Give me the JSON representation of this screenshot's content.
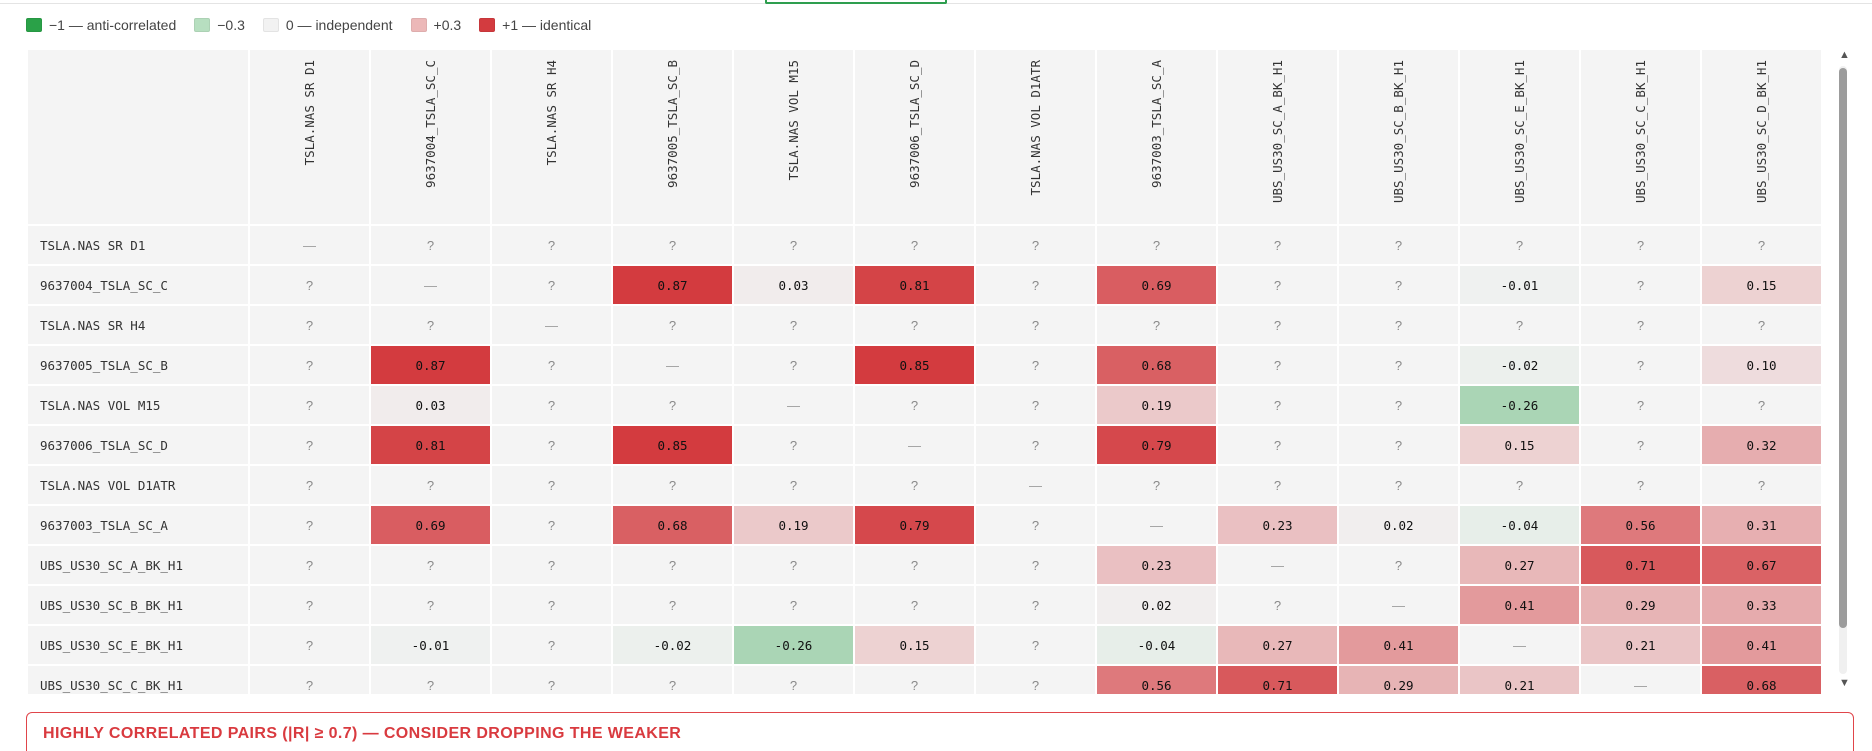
{
  "legend": [
    {
      "label": "−1 — anti-correlated",
      "color": "#2aa148"
    },
    {
      "label": "−0.3",
      "color": "#b7dfc0"
    },
    {
      "label": "0 — independent",
      "color": "#f2f2f2"
    },
    {
      "label": "+0.3",
      "color": "#ecb8b8"
    },
    {
      "label": "+1 — identical",
      "color": "#d33b3f"
    }
  ],
  "matrix": {
    "columns": [
      "TSLA.NAS SR D1",
      "9637004_TSLA_SC_C",
      "TSLA.NAS SR H4",
      "9637005_TSLA_SC_B",
      "TSLA.NAS VOL M15",
      "9637006_TSLA_SC_D",
      "TSLA.NAS VOL D1ATR",
      "9637003_TSLA_SC_A",
      "UBS_US30_SC_A_BK_H1",
      "UBS_US30_SC_B_BK_H1",
      "UBS_US30_SC_E_BK_H1",
      "UBS_US30_SC_C_BK_H1",
      "UBS_US30_SC_D_BK_H1"
    ],
    "rows": [
      {
        "label": "TSLA.NAS SR D1",
        "values": [
          "—",
          "?",
          "?",
          "?",
          "?",
          "?",
          "?",
          "?",
          "?",
          "?",
          "?",
          "?",
          "?"
        ]
      },
      {
        "label": "9637004_TSLA_SC_C",
        "values": [
          "?",
          "—",
          "?",
          "0.87",
          "0.03",
          "0.81",
          "?",
          "0.69",
          "?",
          "?",
          "-0.01",
          "?",
          "0.15"
        ]
      },
      {
        "label": "TSLA.NAS SR H4",
        "values": [
          "?",
          "?",
          "—",
          "?",
          "?",
          "?",
          "?",
          "?",
          "?",
          "?",
          "?",
          "?",
          "?"
        ]
      },
      {
        "label": "9637005_TSLA_SC_B",
        "values": [
          "?",
          "0.87",
          "?",
          "—",
          "?",
          "0.85",
          "?",
          "0.68",
          "?",
          "?",
          "-0.02",
          "?",
          "0.10"
        ]
      },
      {
        "label": "TSLA.NAS VOL M15",
        "values": [
          "?",
          "0.03",
          "?",
          "?",
          "—",
          "?",
          "?",
          "0.19",
          "?",
          "?",
          "-0.26",
          "?",
          "?"
        ]
      },
      {
        "label": "9637006_TSLA_SC_D",
        "values": [
          "?",
          "0.81",
          "?",
          "0.85",
          "?",
          "—",
          "?",
          "0.79",
          "?",
          "?",
          "0.15",
          "?",
          "0.32"
        ]
      },
      {
        "label": "TSLA.NAS VOL D1ATR",
        "values": [
          "?",
          "?",
          "?",
          "?",
          "?",
          "?",
          "—",
          "?",
          "?",
          "?",
          "?",
          "?",
          "?"
        ]
      },
      {
        "label": "9637003_TSLA_SC_A",
        "values": [
          "?",
          "0.69",
          "?",
          "0.68",
          "0.19",
          "0.79",
          "?",
          "—",
          "0.23",
          "0.02",
          "-0.04",
          "0.56",
          "0.31"
        ]
      },
      {
        "label": "UBS_US30_SC_A_BK_H1",
        "values": [
          "?",
          "?",
          "?",
          "?",
          "?",
          "?",
          "?",
          "0.23",
          "—",
          "?",
          "0.27",
          "0.71",
          "0.67"
        ]
      },
      {
        "label": "UBS_US30_SC_B_BK_H1",
        "values": [
          "?",
          "?",
          "?",
          "?",
          "?",
          "?",
          "?",
          "0.02",
          "?",
          "—",
          "0.41",
          "0.29",
          "0.33"
        ]
      },
      {
        "label": "UBS_US30_SC_E_BK_H1",
        "values": [
          "?",
          "-0.01",
          "?",
          "-0.02",
          "-0.26",
          "0.15",
          "?",
          "-0.04",
          "0.27",
          "0.41",
          "—",
          "0.21",
          "0.41"
        ]
      },
      {
        "label": "UBS_US30_SC_C_BK_H1",
        "values": [
          "?",
          "?",
          "?",
          "?",
          "?",
          "?",
          "?",
          "0.56",
          "0.71",
          "0.29",
          "0.21",
          "—",
          "0.68"
        ]
      }
    ]
  },
  "scrollbar": {
    "up_glyph": "▲",
    "down_glyph": "▼"
  },
  "pairs_panel": {
    "title": "HIGHLY CORRELATED PAIRS (|R| ≥ 0.7) — CONSIDER DROPPING THE WEAKER"
  }
}
